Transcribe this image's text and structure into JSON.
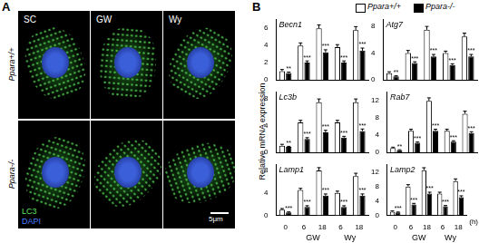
{
  "panels": {
    "A": {
      "label": "A",
      "columns": [
        "SC",
        "GW",
        "Wy"
      ],
      "rows": [
        "Ppara+/+",
        "Ppara-/-"
      ],
      "stain_labels": [
        {
          "text": "LC3",
          "color": "#5ee05e"
        },
        {
          "text": "DAPI",
          "color": "#4a7bff"
        }
      ],
      "scale_bar": "5μm"
    },
    "B": {
      "label": "B",
      "y_label": "Relative mRNA expression",
      "legend": "top"
    }
  },
  "chart_data": [
    {
      "type": "bar",
      "title": "Becn1",
      "categories": [
        "0",
        "6",
        "18",
        "6",
        "18"
      ],
      "tick_labels": "y",
      "ylim": [
        0,
        7
      ],
      "yticks": [
        0,
        2,
        4,
        6
      ],
      "series": [
        {
          "name": "Ppara+/+",
          "color": "#ffffff",
          "values": [
            1,
            4,
            6,
            3.8,
            5.8
          ],
          "errors": [
            0.2,
            0.3,
            0.4,
            0.3,
            0.4
          ]
        },
        {
          "name": "Ppara-/-",
          "color": "#000000",
          "values": [
            0.8,
            2,
            3.2,
            2,
            3.4
          ],
          "errors": [
            0.1,
            0.2,
            0.3,
            0.2,
            0.3
          ],
          "stars": [
            "**",
            "***",
            "***",
            "***",
            "***"
          ]
        }
      ]
    },
    {
      "type": "bar",
      "title": "Atg7",
      "categories": [
        "0",
        "6",
        "18",
        "6",
        "18"
      ],
      "tick_labels": "y",
      "ylim": [
        0,
        9
      ],
      "yticks": [
        0,
        4,
        8
      ],
      "series": [
        {
          "name": "Ppara+/+",
          "color": "#ffffff",
          "values": [
            1,
            4,
            7.5,
            4,
            6.5
          ],
          "errors": [
            0.2,
            0.4,
            0.5,
            0.3,
            0.5
          ]
        },
        {
          "name": "Ppara-/-",
          "color": "#000000",
          "values": [
            0.5,
            2.5,
            3.5,
            2.2,
            3.5
          ],
          "errors": [
            0.1,
            0.2,
            0.3,
            0.2,
            0.3
          ],
          "stars": [
            "**",
            "***",
            "***",
            "***",
            "***"
          ]
        }
      ]
    },
    {
      "type": "bar",
      "title": "Lc3b",
      "categories": [
        "0",
        "6",
        "18",
        "6",
        "18"
      ],
      "tick_labels": "y",
      "ylim": [
        0,
        9
      ],
      "yticks": [
        0,
        4,
        8
      ],
      "series": [
        {
          "name": "Ppara+/+",
          "color": "#ffffff",
          "values": [
            1,
            4.5,
            7.5,
            4.5,
            7.5
          ],
          "errors": [
            0.2,
            0.3,
            0.5,
            0.3,
            0.5
          ]
        },
        {
          "name": "Ppara-/-",
          "color": "#000000",
          "values": [
            0.8,
            2,
            3,
            2.2,
            3.2
          ],
          "errors": [
            0.1,
            0.2,
            0.3,
            0.2,
            0.3
          ],
          "stars": [
            "**",
            "***",
            "***",
            "***",
            "***"
          ]
        }
      ]
    },
    {
      "type": "bar",
      "title": "Rab7",
      "categories": [
        "0",
        "6",
        "18",
        "6",
        "18"
      ],
      "tick_labels": "y",
      "ylim": [
        0,
        14
      ],
      "yticks": [
        0,
        4,
        8,
        12
      ],
      "series": [
        {
          "name": "Ppara+/+",
          "color": "#ffffff",
          "values": [
            1,
            5,
            12,
            5,
            9
          ],
          "errors": [
            0.2,
            0.4,
            0.7,
            0.4,
            0.6
          ]
        },
        {
          "name": "Ppara-/-",
          "color": "#000000",
          "values": [
            0.5,
            2.2,
            5,
            2.5,
            4.5
          ],
          "errors": [
            0.1,
            0.2,
            0.4,
            0.2,
            0.3
          ],
          "stars": [
            "**",
            "***",
            "***",
            "***",
            "***"
          ]
        }
      ]
    },
    {
      "type": "bar",
      "title": "Lamp1",
      "categories": [
        "0",
        "6",
        "18",
        "6",
        "18"
      ],
      "x_groups": [
        {
          "label": "GW",
          "span": [
            1,
            2
          ]
        },
        {
          "label": "Wy",
          "span": [
            3,
            4
          ]
        }
      ],
      "ylim": [
        0,
        9
      ],
      "yticks": [
        0,
        4,
        8
      ],
      "series": [
        {
          "name": "Ppara+/+",
          "color": "#ffffff",
          "values": [
            1,
            4.5,
            8,
            4,
            7
          ],
          "errors": [
            0.2,
            0.3,
            0.5,
            0.3,
            0.5
          ]
        },
        {
          "name": "Ppara-/-",
          "color": "#000000",
          "values": [
            0.5,
            1.5,
            3.5,
            1.5,
            3.5
          ],
          "errors": [
            0.1,
            0.2,
            0.3,
            0.2,
            0.3
          ],
          "stars": [
            "***",
            "***",
            "***",
            "***",
            "***"
          ]
        }
      ]
    },
    {
      "type": "bar",
      "title": "Lamp2",
      "categories": [
        "0",
        "6",
        "18",
        "6",
        "18"
      ],
      "x_label": "(h)",
      "x_groups": [
        {
          "label": "GW",
          "span": [
            1,
            2
          ]
        },
        {
          "label": "Wy",
          "span": [
            3,
            4
          ]
        }
      ],
      "ylim": [
        0,
        14
      ],
      "yticks": [
        0,
        4,
        8,
        12
      ],
      "series": [
        {
          "name": "Ppara+/+",
          "color": "#ffffff",
          "values": [
            1,
            8,
            12.5,
            6,
            9.5
          ],
          "errors": [
            0.2,
            0.5,
            0.7,
            0.4,
            0.6
          ]
        },
        {
          "name": "Ppara-/-",
          "color": "#000000",
          "values": [
            0.8,
            3,
            6,
            2.5,
            5
          ],
          "errors": [
            0.1,
            0.3,
            0.4,
            0.2,
            0.4
          ],
          "stars": [
            "***",
            "***",
            "***",
            "***",
            "***"
          ]
        }
      ]
    }
  ]
}
